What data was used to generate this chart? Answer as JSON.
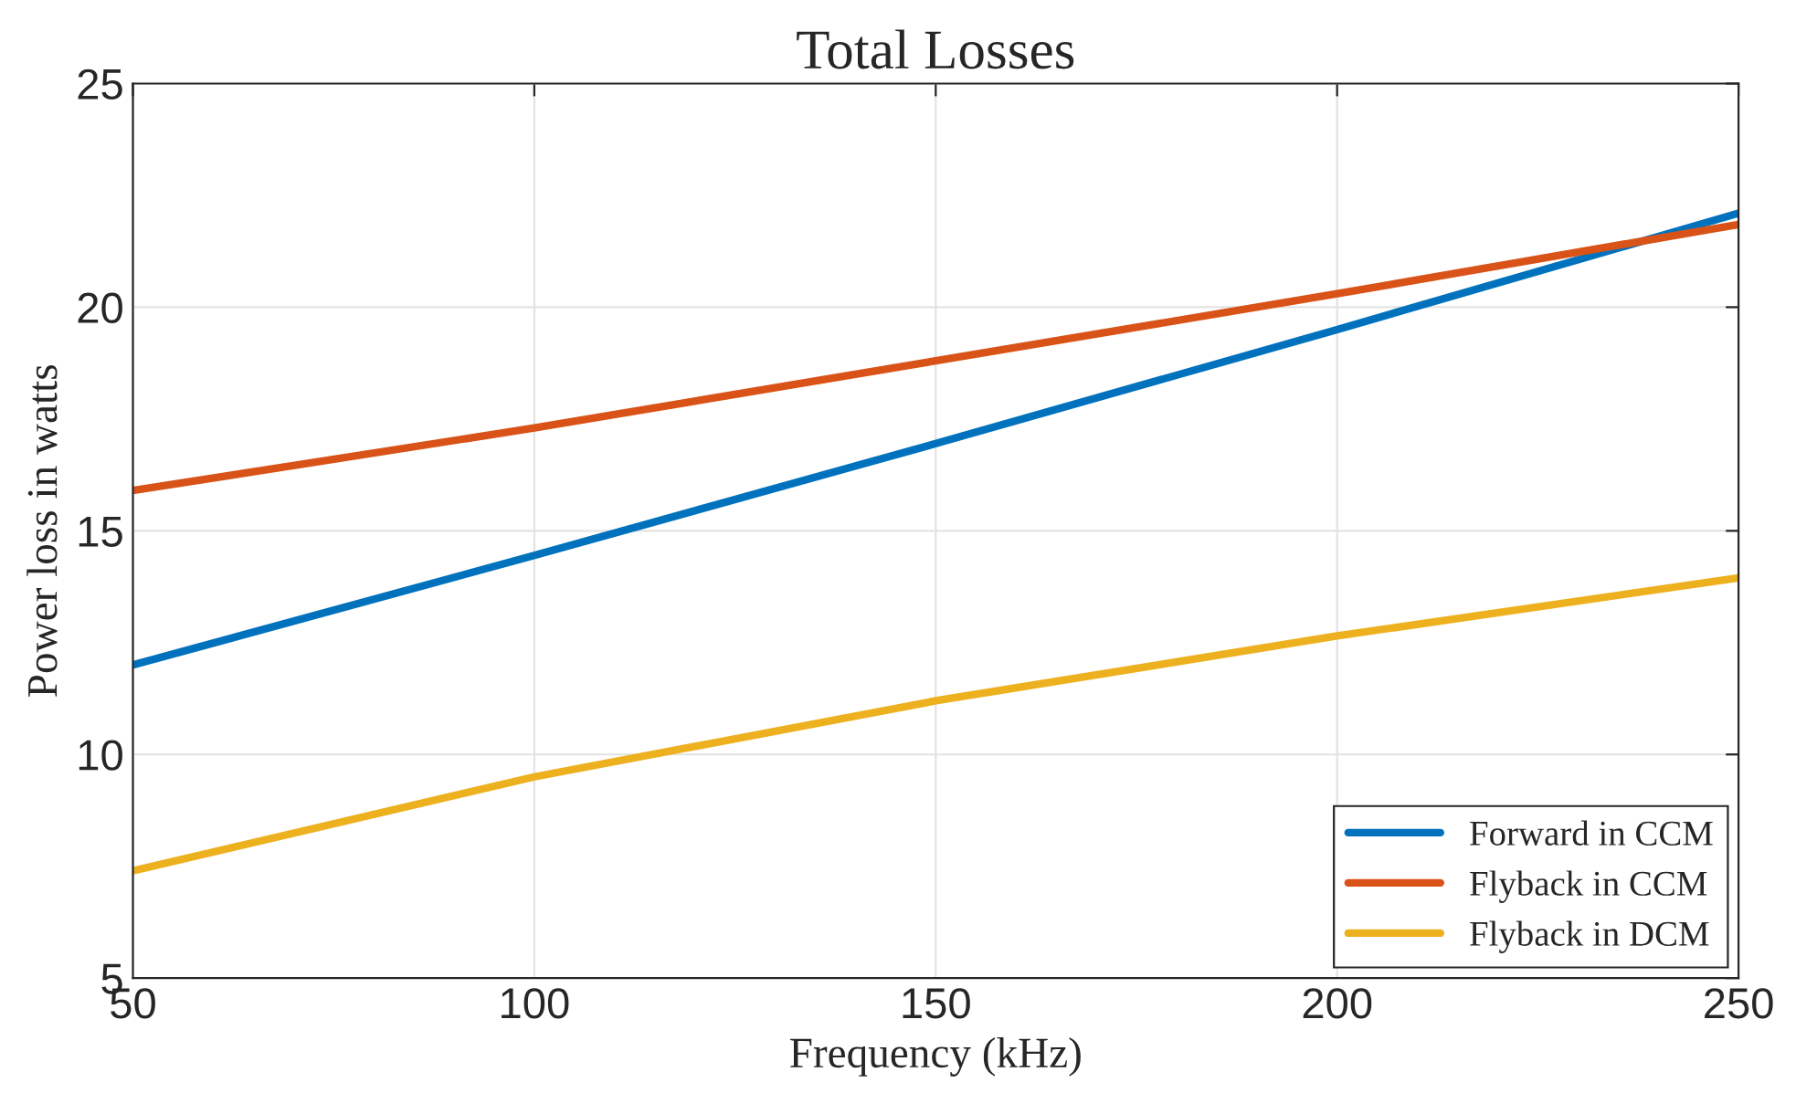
{
  "chart_data": {
    "type": "line",
    "title": "Total Losses",
    "xlabel": "Frequency (kHz)",
    "ylabel": "Power loss in watts",
    "x": [
      50,
      100,
      150,
      200,
      250
    ],
    "series": [
      {
        "name": "Forward in CCM",
        "color": "#0072bd",
        "values": [
          12.0,
          14.45,
          16.95,
          19.5,
          22.1
        ]
      },
      {
        "name": "Flyback in CCM",
        "color": "#d95319",
        "values": [
          15.9,
          17.3,
          18.8,
          20.3,
          21.85
        ]
      },
      {
        "name": "Flyback in DCM",
        "color": "#edb120",
        "values": [
          7.4,
          9.5,
          11.2,
          12.65,
          13.95
        ]
      }
    ],
    "xlim": [
      50,
      250
    ],
    "xticks": [
      50,
      100,
      150,
      200,
      250
    ],
    "ylim": [
      5,
      25
    ],
    "yticks": [
      5,
      10,
      15,
      20,
      25
    ],
    "grid": true,
    "legend": "bottom right",
    "marker": "none",
    "line_style": "solid"
  }
}
